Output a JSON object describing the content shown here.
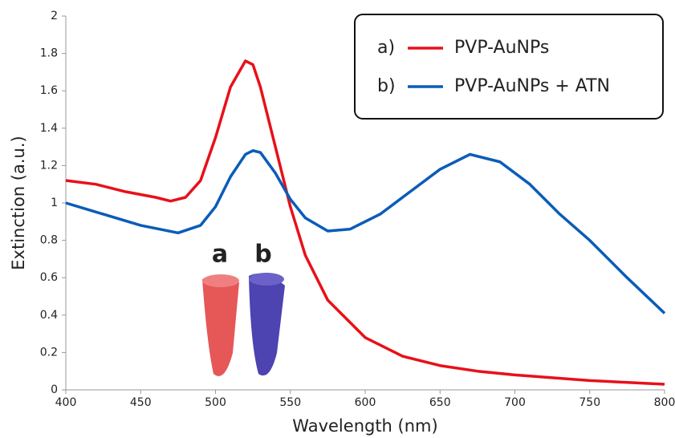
{
  "chart_data": {
    "type": "line",
    "xlabel": "Wavelength (nm)",
    "ylabel": "Extinction (a.u.)",
    "xlim": [
      400,
      800
    ],
    "xticks": [
      400,
      450,
      500,
      550,
      600,
      650,
      700,
      750,
      800
    ],
    "ylim": [
      0,
      2
    ],
    "yticks": [
      0,
      0.2,
      0.4,
      0.6,
      0.8,
      1,
      1.2,
      1.4,
      1.6,
      1.8,
      2
    ],
    "grid": false,
    "legend": "upper right",
    "series": [
      {
        "name": "PVP-AuNPs",
        "label": "a)",
        "color": "#e8101a",
        "x": [
          400,
          420,
          440,
          460,
          470,
          480,
          490,
          500,
          510,
          520,
          525,
          530,
          540,
          550,
          560,
          575,
          600,
          625,
          650,
          675,
          700,
          750,
          800
        ],
        "values": [
          1.12,
          1.1,
          1.06,
          1.03,
          1.01,
          1.03,
          1.12,
          1.35,
          1.62,
          1.76,
          1.74,
          1.62,
          1.3,
          0.98,
          0.72,
          0.48,
          0.28,
          0.18,
          0.13,
          0.1,
          0.08,
          0.05,
          0.03
        ]
      },
      {
        "name": "PVP-AuNPs + ATN",
        "label": "b)",
        "color": "#0a5cb8",
        "x": [
          400,
          425,
          450,
          475,
          490,
          500,
          510,
          520,
          525,
          530,
          540,
          550,
          560,
          575,
          590,
          610,
          630,
          650,
          670,
          690,
          710,
          730,
          750,
          775,
          800
        ],
        "values": [
          1.0,
          0.94,
          0.88,
          0.84,
          0.88,
          0.98,
          1.14,
          1.26,
          1.28,
          1.27,
          1.16,
          1.02,
          0.92,
          0.85,
          0.86,
          0.94,
          1.06,
          1.18,
          1.26,
          1.22,
          1.1,
          0.94,
          0.8,
          0.6,
          0.41
        ]
      }
    ],
    "annotations": [
      "a",
      "b"
    ]
  }
}
